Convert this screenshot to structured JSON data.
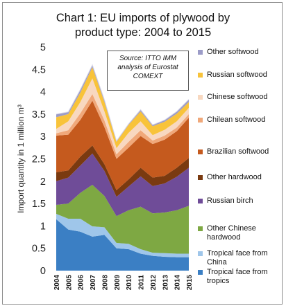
{
  "chart_data": {
    "type": "area",
    "stacked": true,
    "title": "Chart 1: EU imports of plywood by product type: 2004 to 2015",
    "title_lines": [
      "Chart 1: EU imports of plywood by",
      "product type: 2004 to 2015"
    ],
    "ylabel": "Import quantity in 1 million m³",
    "ylim": [
      0,
      5
    ],
    "yticks": [
      "0",
      "0.5",
      "1",
      "1.5",
      "2",
      "2.5",
      "3",
      "3.5",
      "4",
      "4.5",
      "5"
    ],
    "x": [
      "2004",
      "2005",
      "2006",
      "2007",
      "2008",
      "2009",
      "2010",
      "2011",
      "2012",
      "2013",
      "2014",
      "2015"
    ],
    "grid": false,
    "legend_position": "right",
    "annotation": "Source: ITTO IMM analysis of Eurostat COMEXT",
    "series": [
      {
        "name": "Tropical face from tropics",
        "color": "#3b7fc4",
        "values": [
          1.15,
          0.92,
          0.87,
          0.76,
          0.8,
          0.5,
          0.48,
          0.38,
          0.33,
          0.31,
          0.3,
          0.3
        ]
      },
      {
        "name": "Tropical face from China",
        "color": "#9fc6ea",
        "values": [
          0.12,
          0.24,
          0.29,
          0.23,
          0.17,
          0.12,
          0.12,
          0.1,
          0.07,
          0.08,
          0.08,
          0.08
        ]
      },
      {
        "name": "Other Chinese hardwood",
        "color": "#7ea843",
        "values": [
          0.2,
          0.34,
          0.58,
          0.93,
          0.7,
          0.6,
          0.75,
          0.95,
          0.88,
          0.91,
          0.97,
          1.07
        ]
      },
      {
        "name": "Russian birch",
        "color": "#6f4c98",
        "values": [
          0.53,
          0.58,
          0.61,
          0.7,
          0.56,
          0.43,
          0.53,
          0.68,
          0.61,
          0.65,
          0.75,
          0.85
        ]
      },
      {
        "name": "Other hardwood",
        "color": "#7a3a10",
        "values": [
          0.2,
          0.16,
          0.2,
          0.18,
          0.15,
          0.15,
          0.16,
          0.19,
          0.19,
          0.17,
          0.2,
          0.22
        ]
      },
      {
        "name": "Brazilian softwood",
        "color": "#c55a1e",
        "values": [
          0.82,
          0.8,
          0.82,
          1.0,
          0.83,
          0.7,
          0.71,
          0.71,
          0.75,
          0.81,
          0.82,
          0.9
        ]
      },
      {
        "name": "Chilean softwood",
        "color": "#f0a87a",
        "values": [
          0.05,
          0.1,
          0.15,
          0.15,
          0.15,
          0.1,
          0.13,
          0.13,
          0.08,
          0.09,
          0.08,
          0.08
        ]
      },
      {
        "name": "Chinese softwood",
        "color": "#f8d8c0",
        "values": [
          0.1,
          0.2,
          0.25,
          0.35,
          0.2,
          0.14,
          0.2,
          0.2,
          0.12,
          0.13,
          0.14,
          0.14
        ]
      },
      {
        "name": "Russian softwood",
        "color": "#f8c33a",
        "values": [
          0.26,
          0.16,
          0.21,
          0.25,
          0.21,
          0.14,
          0.18,
          0.22,
          0.2,
          0.18,
          0.17,
          0.13
        ]
      },
      {
        "name": "Other softwood",
        "color": "#9c9cc8",
        "values": [
          0.07,
          0.05,
          0.07,
          0.05,
          0.05,
          0.02,
          0.02,
          0.04,
          0.03,
          0.04,
          0.05,
          0.06
        ]
      }
    ]
  }
}
